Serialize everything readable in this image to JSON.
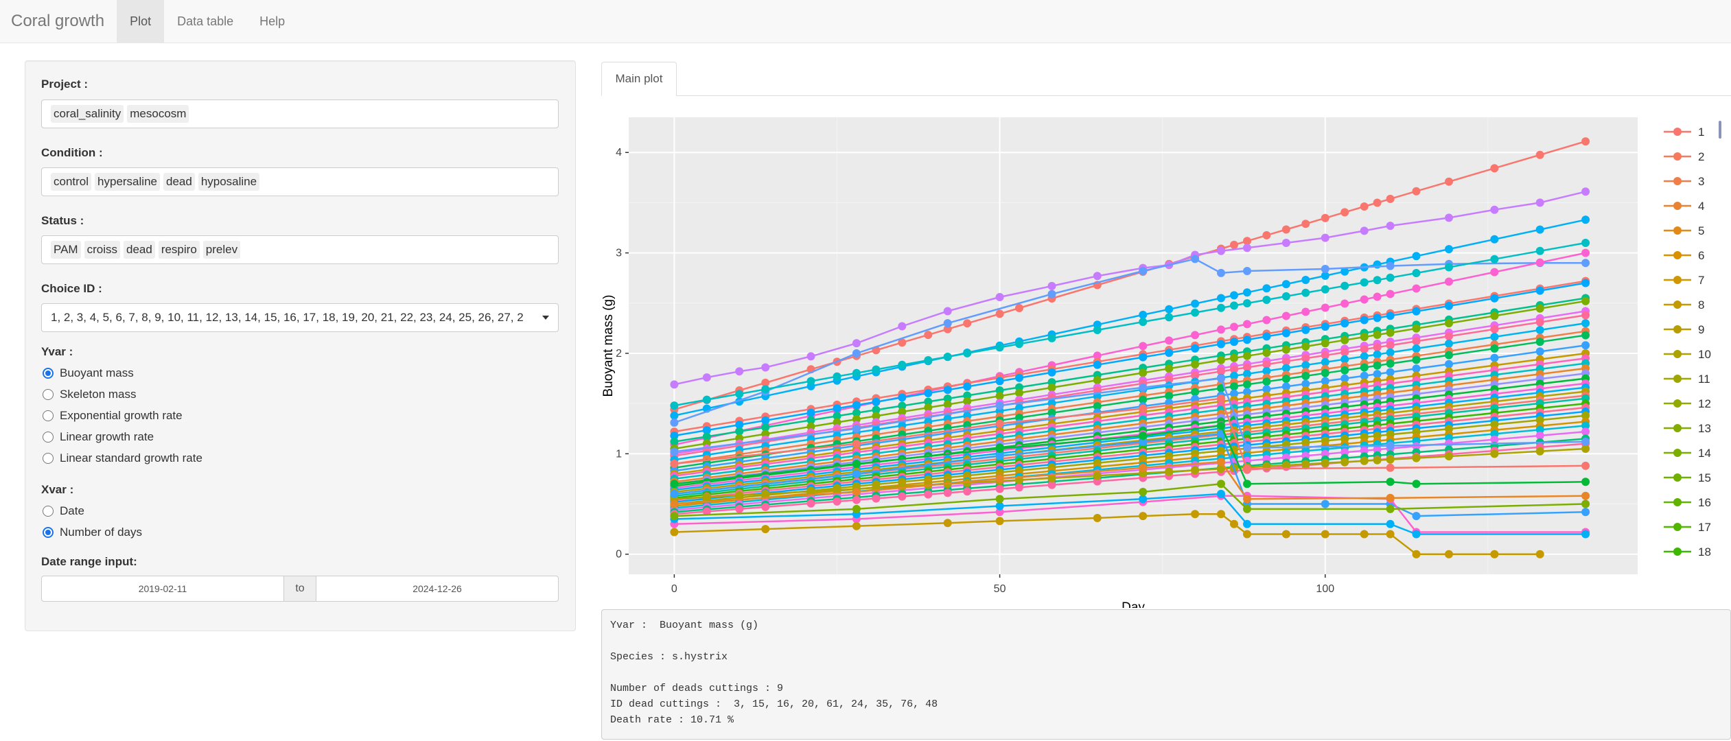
{
  "navbar": {
    "brand": "Coral growth",
    "tabs": [
      {
        "label": "Plot",
        "active": true
      },
      {
        "label": "Data table",
        "active": false
      },
      {
        "label": "Help",
        "active": false
      }
    ]
  },
  "sidebar": {
    "project": {
      "label": "Project :",
      "values": [
        "coral_salinity",
        "mesocosm"
      ]
    },
    "condition": {
      "label": "Condition :",
      "values": [
        "control",
        "hypersaline",
        "dead",
        "hyposaline"
      ]
    },
    "status": {
      "label": "Status :",
      "values": [
        "PAM",
        "croiss",
        "dead",
        "respiro",
        "prelev"
      ]
    },
    "choice_id": {
      "label": "Choice ID :",
      "value": "1, 2, 3, 4, 5, 6, 7, 8, 9, 10, 11, 12, 13, 14, 15, 16, 17, 18, 19, 20, 21, 22, 23, 24, 25, 26, 27, 2"
    },
    "yvar": {
      "label": "Yvar :",
      "options": [
        "Buoyant mass",
        "Skeleton mass",
        "Exponential growth rate",
        "Linear growth rate",
        "Linear standard growth rate"
      ],
      "selected": 0
    },
    "xvar": {
      "label": "Xvar :",
      "options": [
        "Date",
        "Number of days"
      ],
      "selected": 1
    },
    "date_range": {
      "label": "Date range input:",
      "start": "2019-02-11",
      "separator": "to",
      "end": "2024-12-26"
    }
  },
  "main": {
    "tab": "Main plot"
  },
  "chart_data": {
    "type": "line",
    "xlabel": "Day",
    "ylabel": "Buoyant mass (g)",
    "xlim": [
      -7,
      148
    ],
    "ylim": [
      -0.2,
      4.35
    ],
    "x_ticks": [
      "0",
      "50",
      "100"
    ],
    "y_ticks": [
      "0",
      "1",
      "2",
      "3",
      "4"
    ],
    "grid": true,
    "legend_position": "right",
    "legend_entries": [
      "1",
      "2",
      "3",
      "4",
      "5",
      "6",
      "7",
      "8",
      "9",
      "10",
      "11",
      "12",
      "13",
      "14",
      "15",
      "16",
      "17",
      "18"
    ],
    "legend_colors": [
      "#f8766d",
      "#f67a5c",
      "#f07e4a",
      "#ea8331",
      "#e28a17",
      "#d99100",
      "#cf9700",
      "#c49a00",
      "#b89d00",
      "#aca200",
      "#9fa600",
      "#93aa00",
      "#86ab00",
      "#7cae00",
      "#6fb000",
      "#60b400",
      "#52b600",
      "#3cb800"
    ],
    "x": [
      0,
      5,
      10,
      14,
      21,
      25,
      28,
      31,
      35,
      39,
      42,
      45,
      50,
      53,
      58,
      65,
      72,
      76,
      80,
      84,
      86,
      88,
      91,
      94,
      97,
      100,
      103,
      106,
      108,
      110,
      114,
      119,
      126,
      133,
      140
    ],
    "series": [
      {
        "start": 1.44,
        "end": 4.11,
        "color": "#f8766d"
      },
      {
        "start": 1.69,
        "end": 3.61,
        "color": "#c77cff",
        "path": [
          [
            0,
            1.69
          ],
          [
            5,
            1.76
          ],
          [
            10,
            1.82
          ],
          [
            14,
            1.86
          ],
          [
            21,
            1.97
          ],
          [
            28,
            2.1
          ],
          [
            35,
            2.27
          ],
          [
            42,
            2.42
          ],
          [
            50,
            2.56
          ],
          [
            58,
            2.67
          ],
          [
            65,
            2.77
          ],
          [
            72,
            2.85
          ],
          [
            76,
            2.88
          ],
          [
            80,
            2.98
          ],
          [
            84,
            3.02
          ],
          [
            88,
            3.05
          ],
          [
            94,
            3.1
          ],
          [
            100,
            3.15
          ],
          [
            106,
            3.22
          ],
          [
            110,
            3.27
          ],
          [
            119,
            3.35
          ],
          [
            126,
            3.43
          ],
          [
            133,
            3.5
          ],
          [
            140,
            3.61
          ]
        ]
      },
      {
        "start": 1.38,
        "end": 3.33,
        "color": "#00b0f6"
      },
      {
        "start": 1.31,
        "end": 2.9,
        "color": "#619cff",
        "path": [
          [
            0,
            1.31
          ],
          [
            14,
            1.62
          ],
          [
            28,
            2.0
          ],
          [
            42,
            2.3
          ],
          [
            58,
            2.59
          ],
          [
            72,
            2.82
          ],
          [
            80,
            2.94
          ],
          [
            84,
            2.8
          ],
          [
            88,
            2.82
          ],
          [
            100,
            2.84
          ],
          [
            110,
            2.87
          ],
          [
            119,
            2.89
          ],
          [
            133,
            2.9
          ],
          [
            140,
            2.9
          ]
        ]
      },
      {
        "start": 1.48,
        "end": 3.1,
        "color": "#00bfc4"
      },
      {
        "start": 1.09,
        "end": 3.0,
        "color": "#fd61d1"
      },
      {
        "start": 1.22,
        "end": 2.72,
        "color": "#f8766d"
      },
      {
        "start": 1.18,
        "end": 2.7,
        "color": "#00a9ff"
      },
      {
        "start": 1.12,
        "end": 2.55,
        "color": "#00c08b"
      },
      {
        "start": 1.05,
        "end": 2.52,
        "color": "#7cae00"
      },
      {
        "start": 1.0,
        "end": 2.42,
        "color": "#e76bf3"
      },
      {
        "start": 0.98,
        "end": 2.38,
        "color": "#ff6a98"
      },
      {
        "start": 0.94,
        "end": 2.3,
        "color": "#00b4ef"
      },
      {
        "start": 0.9,
        "end": 2.22,
        "color": "#f07e4a"
      },
      {
        "start": 0.86,
        "end": 2.18,
        "color": "#00bd5c"
      },
      {
        "start": 0.83,
        "end": 2.08,
        "color": "#35a2ff"
      },
      {
        "start": 0.8,
        "end": 2.0,
        "color": "#c49a00"
      },
      {
        "start": 0.78,
        "end": 1.95,
        "color": "#ff62bc"
      },
      {
        "start": 0.75,
        "end": 1.9,
        "color": "#00bfc4"
      },
      {
        "start": 0.72,
        "end": 1.85,
        "color": "#e88526"
      },
      {
        "start": 0.7,
        "end": 1.8,
        "color": "#9590ff"
      },
      {
        "start": 0.68,
        "end": 1.75,
        "color": "#00ba38"
      },
      {
        "start": 0.66,
        "end": 1.7,
        "color": "#fb61d7"
      },
      {
        "start": 0.64,
        "end": 1.66,
        "color": "#00b0f6"
      },
      {
        "start": 0.62,
        "end": 1.62,
        "color": "#b79f00"
      },
      {
        "start": 0.6,
        "end": 1.58,
        "color": "#f8766d"
      },
      {
        "start": 0.58,
        "end": 1.55,
        "color": "#00c1a3"
      },
      {
        "start": 0.56,
        "end": 1.5,
        "color": "#39b600"
      },
      {
        "start": 0.54,
        "end": 1.46,
        "color": "#ff6c91"
      },
      {
        "start": 0.52,
        "end": 1.42,
        "color": "#00a5ff"
      },
      {
        "start": 0.5,
        "end": 1.38,
        "color": "#a3a500"
      },
      {
        "start": 0.48,
        "end": 1.32,
        "color": "#d39200"
      },
      {
        "start": 0.46,
        "end": 1.28,
        "color": "#00bcd8"
      },
      {
        "start": 0.44,
        "end": 1.22,
        "color": "#e76bf3"
      },
      {
        "start": 0.42,
        "end": 1.15,
        "color": "#00bf7d"
      },
      {
        "start": 0.4,
        "end": 1.1,
        "color": "#ff67a4"
      },
      {
        "start": 0.55,
        "end": 1.05,
        "color": "#aca200"
      },
      {
        "start": 0.6,
        "end": 0.42,
        "color": "#35a2ff",
        "path": [
          [
            0,
            0.6
          ],
          [
            28,
            0.8
          ],
          [
            50,
            0.98
          ],
          [
            72,
            1.12
          ],
          [
            84,
            1.2
          ],
          [
            88,
            0.5
          ],
          [
            100,
            0.5
          ],
          [
            110,
            0.5
          ],
          [
            114,
            0.38
          ],
          [
            140,
            0.42
          ]
        ]
      },
      {
        "start": 0.7,
        "end": 0.62,
        "color": "#00ba38",
        "path": [
          [
            0,
            0.7
          ],
          [
            28,
            0.9
          ],
          [
            50,
            1.05
          ],
          [
            72,
            1.18
          ],
          [
            84,
            1.28
          ],
          [
            88,
            0.7
          ],
          [
            110,
            0.72
          ],
          [
            114,
            0.7
          ],
          [
            140,
            0.72
          ]
        ]
      },
      {
        "start": 0.9,
        "end": 0.88,
        "color": "#f8766d",
        "path": [
          [
            0,
            0.9
          ],
          [
            28,
            1.1
          ],
          [
            50,
            1.3
          ],
          [
            72,
            1.45
          ],
          [
            84,
            1.55
          ],
          [
            88,
            0.85
          ],
          [
            110,
            0.86
          ],
          [
            140,
            0.88
          ]
        ]
      },
      {
        "start": 0.3,
        "end": 0.22,
        "color": "#fd61d1",
        "path": [
          [
            0,
            0.3
          ],
          [
            28,
            0.35
          ],
          [
            50,
            0.42
          ],
          [
            72,
            0.52
          ],
          [
            84,
            0.58
          ],
          [
            88,
            0.58
          ],
          [
            110,
            0.55
          ],
          [
            114,
            0.22
          ],
          [
            140,
            0.22
          ]
        ]
      },
      {
        "start": 0.35,
        "end": 0.2,
        "color": "#00b0f6",
        "path": [
          [
            0,
            0.35
          ],
          [
            28,
            0.4
          ],
          [
            50,
            0.48
          ],
          [
            72,
            0.55
          ],
          [
            84,
            0.6
          ],
          [
            88,
            0.3
          ],
          [
            110,
            0.3
          ],
          [
            114,
            0.2
          ],
          [
            140,
            0.2
          ]
        ]
      },
      {
        "start": 0.22,
        "end": 0.0,
        "color": "#c49a00",
        "path": [
          [
            0,
            0.22
          ],
          [
            14,
            0.25
          ],
          [
            28,
            0.28
          ],
          [
            42,
            0.31
          ],
          [
            50,
            0.33
          ],
          [
            65,
            0.36
          ],
          [
            72,
            0.38
          ],
          [
            80,
            0.4
          ],
          [
            84,
            0.4
          ],
          [
            86,
            0.3
          ],
          [
            88,
            0.2
          ],
          [
            94,
            0.2
          ],
          [
            100,
            0.2
          ],
          [
            106,
            0.2
          ],
          [
            110,
            0.2
          ],
          [
            114,
            0.0
          ],
          [
            119,
            0.0
          ],
          [
            126,
            0.0
          ],
          [
            133,
            0.0
          ]
        ]
      },
      {
        "start": 0.38,
        "end": 0.5,
        "color": "#7cae00",
        "path": [
          [
            0,
            0.38
          ],
          [
            28,
            0.45
          ],
          [
            50,
            0.55
          ],
          [
            72,
            0.62
          ],
          [
            84,
            0.7
          ],
          [
            88,
            0.45
          ],
          [
            110,
            0.45
          ],
          [
            140,
            0.5
          ]
        ]
      },
      {
        "start": 0.5,
        "end": 0.58,
        "color": "#e88526",
        "path": [
          [
            0,
            0.5
          ],
          [
            28,
            0.62
          ],
          [
            50,
            0.75
          ],
          [
            72,
            0.86
          ],
          [
            84,
            0.92
          ],
          [
            88,
            0.55
          ],
          [
            110,
            0.56
          ],
          [
            140,
            0.58
          ]
        ]
      },
      {
        "start": 1.02,
        "end": 1.12,
        "color": "#619cff",
        "path": [
          [
            0,
            1.02
          ],
          [
            28,
            1.25
          ],
          [
            50,
            1.48
          ],
          [
            72,
            1.66
          ],
          [
            84,
            1.75
          ],
          [
            88,
            1.06
          ],
          [
            110,
            1.08
          ],
          [
            140,
            1.12
          ]
        ]
      }
    ]
  },
  "summary": {
    "lines": [
      "Yvar :  Buoyant mass (g)",
      "",
      "Species : s.hystrix",
      "",
      "Number of deads cuttings : 9",
      "ID dead cuttings :  3, 15, 16, 20, 61, 24, 35, 76, 48",
      "Death rate : 10.71 %"
    ]
  }
}
